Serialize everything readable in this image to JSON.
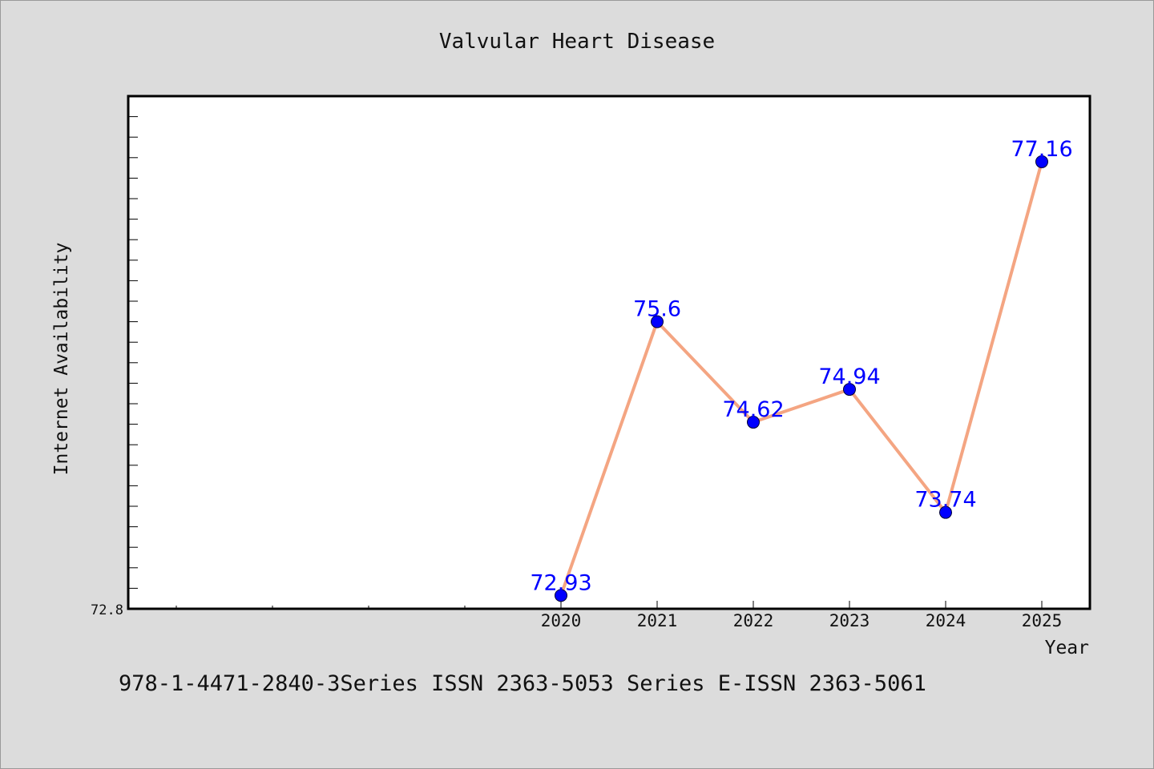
{
  "chart_data": {
    "type": "line",
    "title": "Valvular Heart Disease",
    "xlabel": "Year",
    "ylabel": "Internet Availability",
    "categories": [
      "2020",
      "2021",
      "2022",
      "2023",
      "2024",
      "2025"
    ],
    "series": [
      {
        "values": [
          72.93,
          75.6,
          74.62,
          74.94,
          73.74,
          77.16
        ]
      }
    ],
    "data_labels": [
      "72.93",
      "75.6",
      "74.62",
      "74.94",
      "73.74",
      "77.16"
    ],
    "y_tick_labels": [
      "72.8"
    ],
    "ylim": [
      72.8,
      77.8
    ],
    "grid": false,
    "legend": "none",
    "colors": {
      "line": "#f4a582",
      "marker": "#0000ff",
      "label": "#0000ff",
      "background": "#dcdcdc",
      "plot_background": "#ffffff"
    }
  },
  "footer": "978-1-4471-2840-3Series ISSN 2363-5053 Series E-ISSN 2363-5061"
}
